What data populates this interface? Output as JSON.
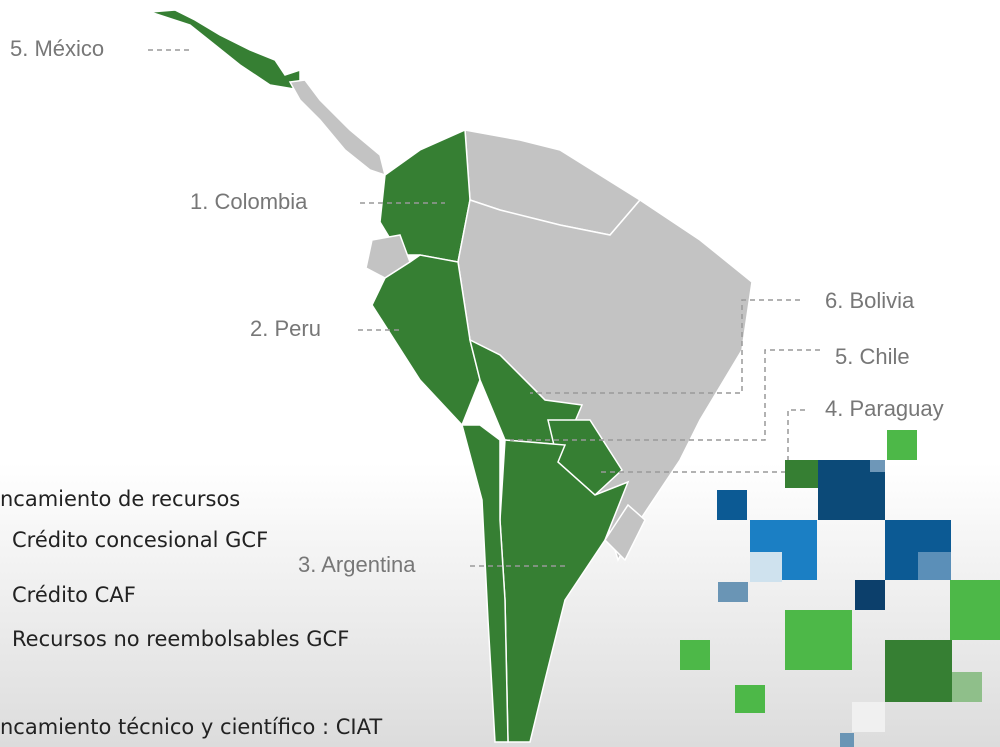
{
  "map": {
    "labels": [
      "5. México",
      "1. Colombia",
      "2. Peru",
      "6. Bolivia",
      "5. Chile",
      "4. Paraguay",
      "3. Argentina"
    ]
  },
  "text": {
    "heading_1": "ncamiento de recursos",
    "items": [
      "Crédito concesional GCF",
      "Crédito CAF",
      "Recursos no reembolsables GCF"
    ],
    "heading_2": "ncamiento técnico y científico : CIAT"
  }
}
